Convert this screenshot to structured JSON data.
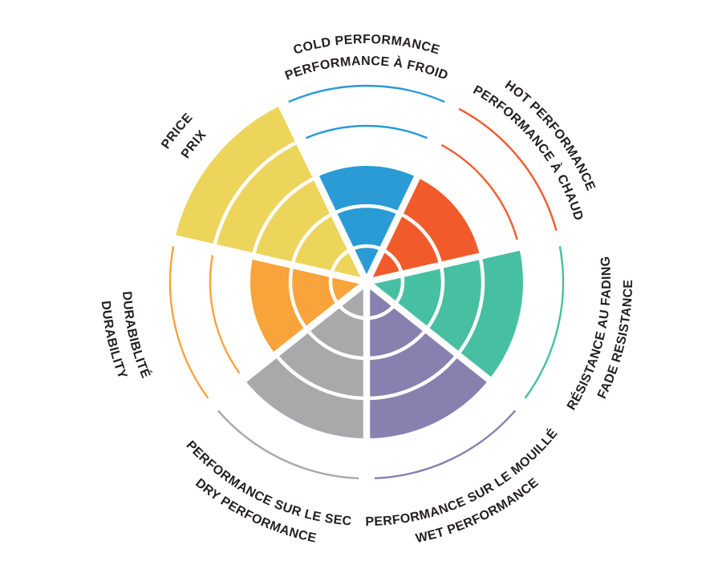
{
  "figure": {
    "background": "#ffffff",
    "label_text_color": "#231f20",
    "divider_color": "#ffffff"
  },
  "chart_data": {
    "type": "polar-wheel",
    "description": "Bilingual tire rating wheel: 7 sectors, each filled to its rating level out of 5 concentric rings; unfilled levels are shown as thin colored outline arcs; curved bilingual labels around the rim",
    "max_level": 5,
    "legend_position": "none",
    "grid": "white ring dividers and radial gaps",
    "categories": [
      {
        "id": "cold-performance",
        "label_en": "COLD PERFORMANCE",
        "label_fr": "PERFORMANCE À FROID",
        "value": 3,
        "color": "#2a9bd5"
      },
      {
        "id": "hot-performance",
        "label_en": "HOT PERFORMANCE",
        "label_fr": "PERFORMANCE À CHAUD",
        "value": 3,
        "color": "#f15b2c"
      },
      {
        "id": "fade-resistance",
        "label_en": "FADE RESISTANCE",
        "label_fr": "RÉSISTANCE AU FADING",
        "value": 4,
        "color": "#47bfa2"
      },
      {
        "id": "wet-performance",
        "label_en": "WET PERFORMANCE",
        "label_fr": "PERFORMANCE SUR LE MOUILLÉ",
        "value": 4,
        "color": "#8880af"
      },
      {
        "id": "dry-performance",
        "label_en": "DRY PERFORMANCE",
        "label_fr": "PERFORMANCE SUR LE SEC",
        "value": 4,
        "color": "#a9a9ac"
      },
      {
        "id": "durability",
        "label_en": "DURABILITY",
        "label_fr": "DURABIBLITÉ",
        "value": 3,
        "color": "#f9a33b"
      },
      {
        "id": "price",
        "label_en": "PRICE",
        "label_fr": "PRIX",
        "value": 5,
        "color": "#edd45b"
      }
    ]
  }
}
